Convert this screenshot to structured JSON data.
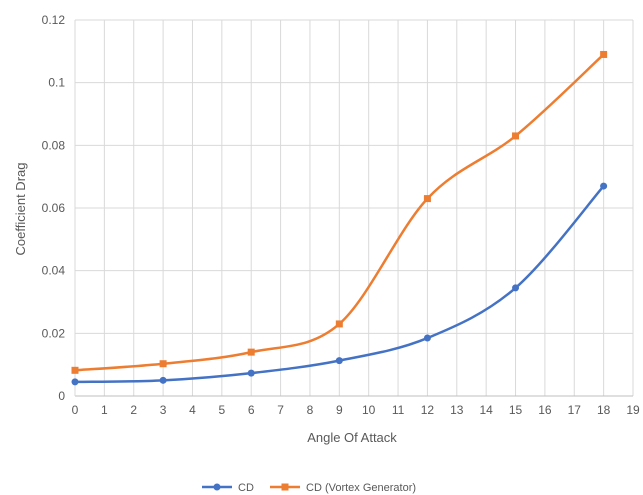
{
  "chart_data": {
    "type": "line",
    "title": "",
    "xlabel": "Angle Of Attack",
    "ylabel": "Coefficient Drag",
    "xlim": [
      0,
      19
    ],
    "ylim": [
      0,
      0.12
    ],
    "x_ticks": [
      0,
      1,
      2,
      3,
      4,
      5,
      6,
      7,
      8,
      9,
      10,
      11,
      12,
      13,
      14,
      15,
      16,
      17,
      18,
      19
    ],
    "y_ticks": [
      0,
      0.02,
      0.04,
      0.06,
      0.08,
      0.1,
      0.12
    ],
    "x_tick_labels": [
      "0",
      "1",
      "2",
      "3",
      "4",
      "5",
      "6",
      "7",
      "8",
      "9",
      "10",
      "11",
      "12",
      "13",
      "14",
      "15",
      "16",
      "17",
      "18",
      "19"
    ],
    "y_tick_labels": [
      "0",
      "0.02",
      "0.04",
      "0.06",
      "0.08",
      "0.1",
      "0.12"
    ],
    "grid": true,
    "smooth": true,
    "legend_position": "bottom",
    "series": [
      {
        "name": "CD",
        "color": "#4472c4",
        "x": [
          0,
          3,
          6,
          9,
          12,
          15,
          18
        ],
        "y": [
          0.0045,
          0.005,
          0.0073,
          0.0113,
          0.0185,
          0.0345,
          0.067
        ]
      },
      {
        "name": "CD (Vortex Generator)",
        "color": "#ed7d31",
        "x": [
          0,
          3,
          6,
          9,
          12,
          15,
          18
        ],
        "y": [
          0.0082,
          0.0103,
          0.014,
          0.023,
          0.063,
          0.083,
          0.109
        ]
      }
    ]
  }
}
